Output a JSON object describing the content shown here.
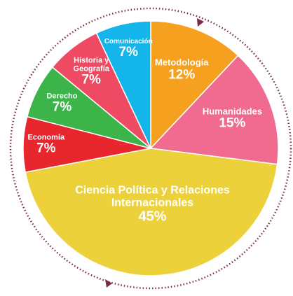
{
  "chart_data": {
    "type": "pie",
    "categories": [
      "Metodología",
      "Humanidades",
      "Ciencia Política y Relaciones Internacionales",
      "Economía",
      "Derecho",
      "Historia y Geografía",
      "Comunicación"
    ],
    "values": [
      12,
      15,
      45,
      7,
      7,
      7,
      7
    ],
    "value_labels": [
      "12%",
      "15%",
      "45%",
      "7%",
      "7%",
      "7%",
      "7%"
    ],
    "colors": [
      "#f5a01f",
      "#f06b8f",
      "#edd13a",
      "#e8262d",
      "#3cb44a",
      "#ef4a63",
      "#13b5ea"
    ]
  }
}
